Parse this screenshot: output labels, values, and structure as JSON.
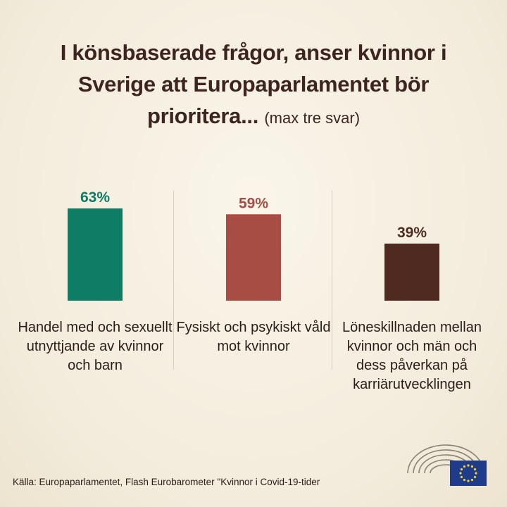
{
  "title": {
    "main": "I könsbaserade frågor, anser kvinnor i Sverige att Europaparlamentet bör prioritera...",
    "sub": "(max tre svar)"
  },
  "chart_data": {
    "type": "bar",
    "categories": [
      "Handel med och sexuellt utnyttjande av kvinnor och barn",
      "Fysiskt och psykiskt våld mot kvinnor",
      "Löneskillnaden mellan kvinnor och män och dess påverkan på karriärutvecklingen"
    ],
    "values": [
      63,
      59,
      39
    ],
    "value_labels": [
      "63%",
      "59%",
      "39%"
    ],
    "colors": [
      "#0f7c66",
      "#a84d44",
      "#4e2a21"
    ],
    "ylim": [
      0,
      63
    ],
    "grid": false
  },
  "source": "Källa: Europaparlamentet, Flash Eurobarometer \"Kvinnor i Covid-19-tider",
  "logo": {
    "icon": "european-parliament-logo",
    "flag": "eu-flag-icon"
  }
}
